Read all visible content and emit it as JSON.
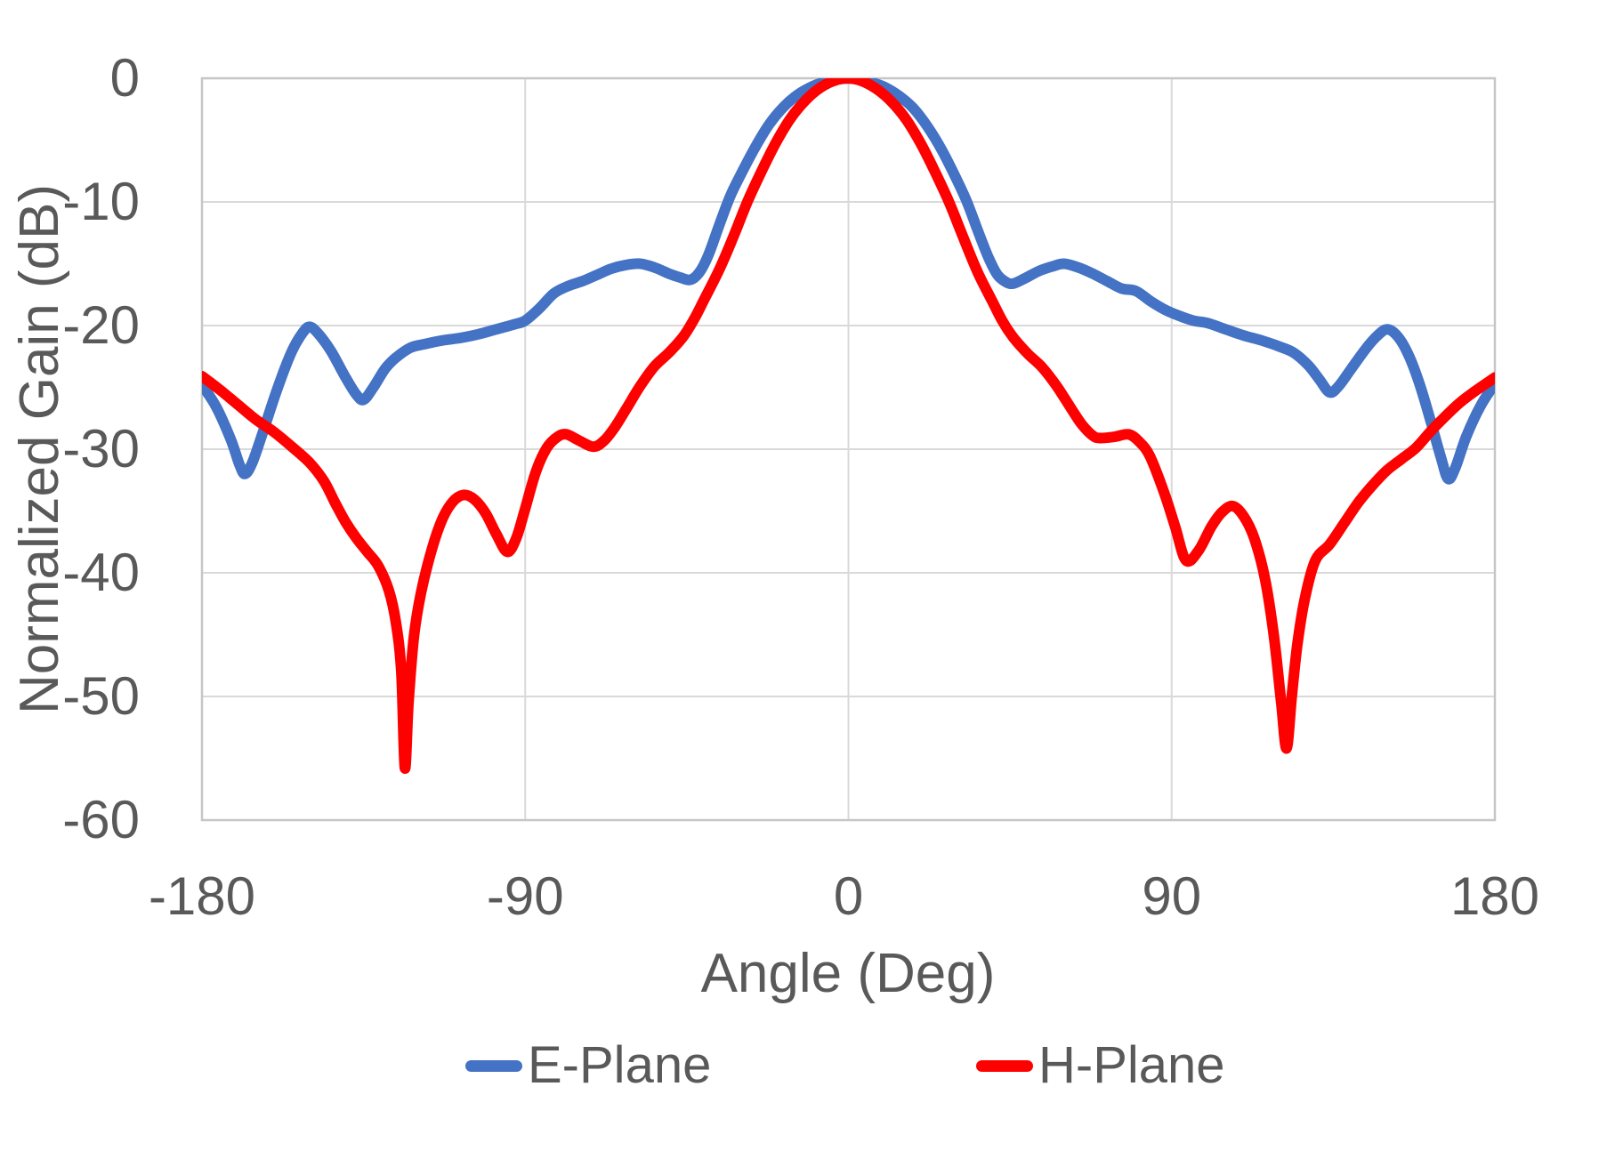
{
  "chart_data": {
    "type": "line",
    "title": "",
    "xlabel": "Angle (Deg)",
    "ylabel": "Normalized Gain (dB)",
    "xlim": [
      -180,
      180
    ],
    "ylim": [
      -60,
      0
    ],
    "x_ticks": [
      -180,
      -90,
      0,
      90,
      180
    ],
    "y_ticks": [
      0,
      -10,
      -20,
      -30,
      -40,
      -50,
      -60
    ],
    "grid": true,
    "legend_position": "bottom-center",
    "colors": {
      "e_plane": "#4472C4",
      "h_plane": "#FF0000",
      "grid": "#D9D9D9",
      "plot_border": "#C6C6C6",
      "axis_text": "#595959"
    },
    "series": [
      {
        "name": "E-Plane",
        "color": "#4472C4",
        "points": [
          [
            -180,
            -24.8
          ],
          [
            -176,
            -26.6
          ],
          [
            -172,
            -29.2
          ],
          [
            -169.5,
            -31.3
          ],
          [
            -168,
            -32.0
          ],
          [
            -166,
            -31.1
          ],
          [
            -163,
            -28.6
          ],
          [
            -159,
            -25.1
          ],
          [
            -155,
            -22.1
          ],
          [
            -152,
            -20.6
          ],
          [
            -150,
            -20.1
          ],
          [
            -147.5,
            -20.7
          ],
          [
            -144,
            -22.1
          ],
          [
            -140,
            -24.2
          ],
          [
            -137,
            -25.6
          ],
          [
            -135,
            -26.0
          ],
          [
            -132.5,
            -25.1
          ],
          [
            -129,
            -23.5
          ],
          [
            -126,
            -22.6
          ],
          [
            -122,
            -21.8
          ],
          [
            -118,
            -21.5
          ],
          [
            -113,
            -21.2
          ],
          [
            -108,
            -21.0
          ],
          [
            -103,
            -20.7
          ],
          [
            -98,
            -20.3
          ],
          [
            -93,
            -19.9
          ],
          [
            -90,
            -19.6
          ],
          [
            -86,
            -18.6
          ],
          [
            -82,
            -17.4
          ],
          [
            -78,
            -16.8
          ],
          [
            -74,
            -16.4
          ],
          [
            -70,
            -15.9
          ],
          [
            -66,
            -15.4
          ],
          [
            -62,
            -15.1
          ],
          [
            -58,
            -15.0
          ],
          [
            -54,
            -15.3
          ],
          [
            -50,
            -15.8
          ],
          [
            -47,
            -16.1
          ],
          [
            -44,
            -16.3
          ],
          [
            -41.5,
            -15.7
          ],
          [
            -39,
            -14.3
          ],
          [
            -36,
            -11.9
          ],
          [
            -33,
            -9.6
          ],
          [
            -30,
            -7.8
          ],
          [
            -26,
            -5.6
          ],
          [
            -22,
            -3.7
          ],
          [
            -18,
            -2.3
          ],
          [
            -14,
            -1.3
          ],
          [
            -10,
            -0.65
          ],
          [
            -6,
            -0.25
          ],
          [
            -2,
            -0.05
          ],
          [
            2,
            -0.05
          ],
          [
            6,
            -0.3
          ],
          [
            10,
            -0.7
          ],
          [
            14,
            -1.4
          ],
          [
            18,
            -2.4
          ],
          [
            22,
            -3.9
          ],
          [
            26,
            -5.8
          ],
          [
            30,
            -8.1
          ],
          [
            33,
            -10.0
          ],
          [
            36,
            -12.3
          ],
          [
            39,
            -14.5
          ],
          [
            41.5,
            -15.9
          ],
          [
            44,
            -16.5
          ],
          [
            46,
            -16.6
          ],
          [
            49,
            -16.2
          ],
          [
            53,
            -15.6
          ],
          [
            57,
            -15.2
          ],
          [
            60,
            -15.0
          ],
          [
            64,
            -15.3
          ],
          [
            68,
            -15.8
          ],
          [
            72,
            -16.4
          ],
          [
            76,
            -17.0
          ],
          [
            80,
            -17.2
          ],
          [
            84,
            -18.0
          ],
          [
            88,
            -18.7
          ],
          [
            92,
            -19.2
          ],
          [
            96,
            -19.6
          ],
          [
            100,
            -19.8
          ],
          [
            105,
            -20.3
          ],
          [
            110,
            -20.8
          ],
          [
            115,
            -21.2
          ],
          [
            120,
            -21.7
          ],
          [
            124,
            -22.2
          ],
          [
            128,
            -23.2
          ],
          [
            131,
            -24.3
          ],
          [
            134,
            -25.4
          ],
          [
            136.5,
            -24.9
          ],
          [
            140,
            -23.5
          ],
          [
            144,
            -21.9
          ],
          [
            147,
            -20.9
          ],
          [
            150,
            -20.3
          ],
          [
            153,
            -20.9
          ],
          [
            156,
            -22.4
          ],
          [
            159,
            -24.7
          ],
          [
            162,
            -27.6
          ],
          [
            165,
            -30.7
          ],
          [
            167,
            -32.4
          ],
          [
            169,
            -31.5
          ],
          [
            172,
            -29.0
          ],
          [
            176,
            -26.5
          ],
          [
            180,
            -24.7
          ]
        ]
      },
      {
        "name": "H-Plane",
        "color": "#FF0000",
        "points": [
          [
            -180,
            -24.1
          ],
          [
            -175,
            -25.2
          ],
          [
            -170,
            -26.4
          ],
          [
            -165,
            -27.6
          ],
          [
            -160,
            -28.6
          ],
          [
            -155,
            -29.8
          ],
          [
            -150,
            -31.1
          ],
          [
            -146,
            -32.6
          ],
          [
            -143,
            -34.3
          ],
          [
            -140,
            -35.9
          ],
          [
            -137,
            -37.2
          ],
          [
            -134,
            -38.3
          ],
          [
            -131,
            -39.4
          ],
          [
            -128,
            -41.4
          ],
          [
            -126,
            -44.0
          ],
          [
            -124.5,
            -48.0
          ],
          [
            -123.5,
            -55.8
          ],
          [
            -122.5,
            -50.5
          ],
          [
            -121,
            -45.2
          ],
          [
            -119,
            -41.6
          ],
          [
            -116,
            -38.1
          ],
          [
            -113,
            -35.6
          ],
          [
            -110,
            -34.2
          ],
          [
            -107,
            -33.7
          ],
          [
            -104,
            -34.1
          ],
          [
            -101,
            -35.2
          ],
          [
            -98,
            -36.9
          ],
          [
            -95,
            -38.3
          ],
          [
            -92.5,
            -37.2
          ],
          [
            -90,
            -34.8
          ],
          [
            -87,
            -31.8
          ],
          [
            -84,
            -29.9
          ],
          [
            -81,
            -29.0
          ],
          [
            -78.5,
            -28.8
          ],
          [
            -75,
            -29.3
          ],
          [
            -71,
            -29.8
          ],
          [
            -68,
            -29.3
          ],
          [
            -65,
            -28.2
          ],
          [
            -62,
            -26.8
          ],
          [
            -58,
            -24.9
          ],
          [
            -54,
            -23.3
          ],
          [
            -50,
            -22.2
          ],
          [
            -46,
            -20.9
          ],
          [
            -43,
            -19.5
          ],
          [
            -40,
            -17.8
          ],
          [
            -36,
            -15.5
          ],
          [
            -32,
            -12.8
          ],
          [
            -28,
            -9.9
          ],
          [
            -24,
            -7.4
          ],
          [
            -20,
            -5.1
          ],
          [
            -16,
            -3.2
          ],
          [
            -12,
            -1.8
          ],
          [
            -8,
            -0.8
          ],
          [
            -4,
            -0.2
          ],
          [
            0,
            0
          ],
          [
            4,
            -0.25
          ],
          [
            8,
            -0.9
          ],
          [
            12,
            -1.9
          ],
          [
            16,
            -3.3
          ],
          [
            20,
            -5.2
          ],
          [
            24,
            -7.5
          ],
          [
            28,
            -10.0
          ],
          [
            32,
            -12.9
          ],
          [
            36,
            -15.7
          ],
          [
            40,
            -18.0
          ],
          [
            43,
            -19.7
          ],
          [
            46,
            -21.0
          ],
          [
            50,
            -22.3
          ],
          [
            54,
            -23.4
          ],
          [
            58,
            -24.9
          ],
          [
            62,
            -26.7
          ],
          [
            65,
            -28.0
          ],
          [
            68,
            -28.9
          ],
          [
            70,
            -29.1
          ],
          [
            74,
            -29.0
          ],
          [
            78,
            -28.8
          ],
          [
            81,
            -29.4
          ],
          [
            84,
            -30.6
          ],
          [
            88,
            -33.6
          ],
          [
            91,
            -36.3
          ],
          [
            94,
            -39.0
          ],
          [
            97.5,
            -38.2
          ],
          [
            101,
            -36.3
          ],
          [
            104,
            -35.1
          ],
          [
            107,
            -34.6
          ],
          [
            110,
            -35.4
          ],
          [
            113,
            -37.2
          ],
          [
            116,
            -40.5
          ],
          [
            118.5,
            -45.2
          ],
          [
            120.5,
            -50.5
          ],
          [
            122,
            -54.2
          ],
          [
            123.5,
            -49.8
          ],
          [
            125,
            -45.8
          ],
          [
            127,
            -42.2
          ],
          [
            130,
            -39.0
          ],
          [
            134,
            -37.7
          ],
          [
            138,
            -36.0
          ],
          [
            142,
            -34.3
          ],
          [
            146,
            -32.9
          ],
          [
            150,
            -31.7
          ],
          [
            154,
            -30.8
          ],
          [
            158,
            -29.9
          ],
          [
            162,
            -28.6
          ],
          [
            166,
            -27.4
          ],
          [
            170,
            -26.3
          ],
          [
            174,
            -25.4
          ],
          [
            180,
            -24.2
          ]
        ]
      }
    ]
  }
}
